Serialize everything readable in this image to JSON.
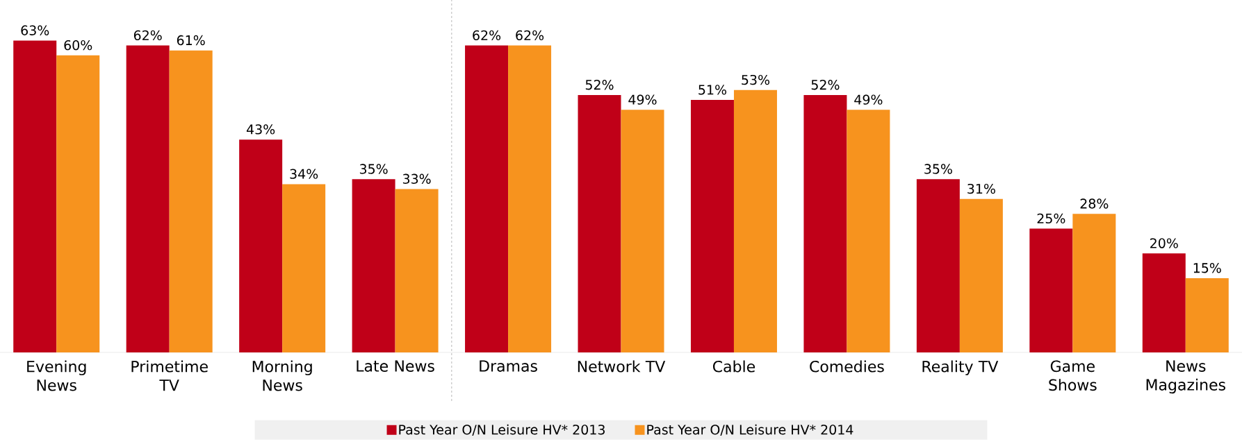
{
  "chart_data": {
    "type": "bar",
    "categories": [
      "Evening News",
      "Primetime TV",
      "Morning News",
      "Late News",
      "Dramas",
      "Network TV",
      "Cable",
      "Comedies",
      "Reality TV",
      "Game Shows",
      "News Magazines"
    ],
    "series": [
      {
        "name": "Past Year O/N Leisure HV* 2013",
        "color": "#c00018",
        "values": [
          63,
          62,
          43,
          35,
          62,
          52,
          51,
          52,
          35,
          25,
          20
        ],
        "value_labels": [
          "63%",
          "62%",
          "43%",
          "35%",
          "62%",
          "52%",
          "51%",
          "52%",
          "35%",
          "25%",
          "20%"
        ]
      },
      {
        "name": "Past Year O/N Leisure HV* 2014",
        "color": "#f7931e",
        "values": [
          60,
          61,
          34,
          33,
          62,
          49,
          53,
          49,
          31,
          28,
          15
        ],
        "value_labels": [
          "60%",
          "61%",
          "34%",
          "33%",
          "62%",
          "49%",
          "53%",
          "49%",
          "31%",
          "28%",
          "15%"
        ]
      }
    ],
    "legend": "bottom"
  }
}
